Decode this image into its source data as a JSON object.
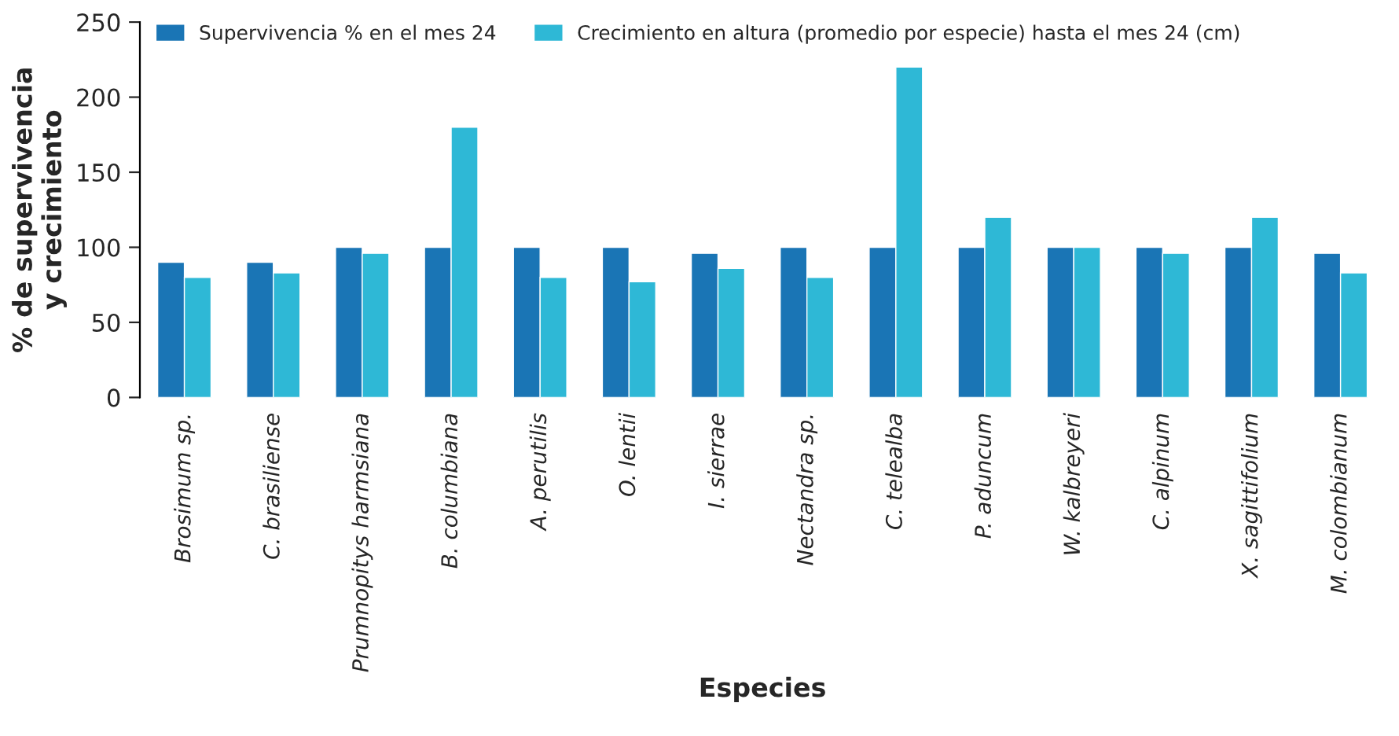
{
  "chart_data": {
    "type": "bar",
    "xlabel": "Especies",
    "ylabel": "% de supervivencia\ny crecimiento",
    "categories": [
      "Brosimum sp.",
      "C. brasiliense",
      "Prumnopitys harmsiana",
      "B. columbiana",
      "A. perutilis",
      "O. lentii",
      "I. sierrae",
      "Nectandra sp.",
      "C. telealba",
      "P. aduncum",
      "W. kalbreyeri",
      "C. alpinum",
      "X. sagittifolium",
      "M. colombianum"
    ],
    "series": [
      {
        "name": "Supervivencia % en el mes 24",
        "color": "#1a75b5",
        "values": [
          90,
          90,
          100,
          100,
          100,
          100,
          96,
          100,
          100,
          100,
          100,
          100,
          100,
          96
        ]
      },
      {
        "name": "Crecimiento en altura (promedio por especie) hasta el mes 24 (cm)",
        "color": "#2eb8d6",
        "values": [
          80,
          83,
          96,
          180,
          80,
          77,
          86,
          80,
          220,
          120,
          100,
          96,
          120,
          83
        ]
      }
    ],
    "ylim": [
      0,
      250
    ],
    "yticks": [
      0,
      50,
      100,
      150,
      200,
      250
    ],
    "grid": false,
    "legend": "top left"
  }
}
